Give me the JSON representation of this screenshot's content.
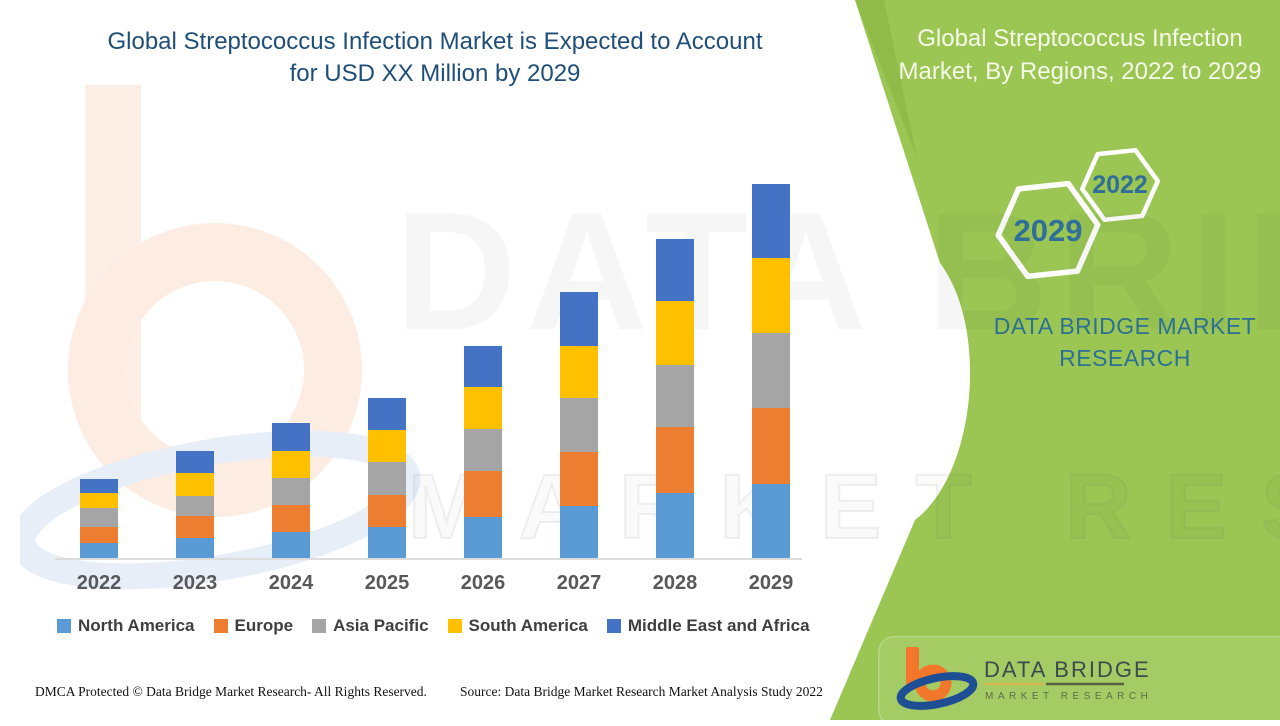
{
  "header": {
    "main_title_line1": "Global Streptococcus Infection Market is Expected to Account",
    "main_title_line2": "for USD XX Million by 2029",
    "panel_title_line1": "Global Streptococcus Infection",
    "panel_title_line2": "Market, By Regions, 2022 to 2029"
  },
  "side_panel": {
    "hexagon_top_label": "2022",
    "hexagon_bottom_label": "2029",
    "brand_line1": "DATA BRIDGE MARKET",
    "brand_line2": "RESEARCH"
  },
  "watermark": {
    "big_text": "DATA BRIDGE",
    "outline_text": "MARKET RESEARCH"
  },
  "chart_data": {
    "type": "bar",
    "stacked": true,
    "title": "Global Streptococcus Infection Market, By Regions, 2022 to 2029",
    "xlabel": "",
    "ylabel": "",
    "unit": "relative units (market size shown as USD XX Million, no value axis displayed)",
    "ylim": [
      0,
      400
    ],
    "grid": false,
    "legend_position": "bottom",
    "categories": [
      "2022",
      "2023",
      "2024",
      "2025",
      "2026",
      "2027",
      "2028",
      "2029"
    ],
    "series": [
      {
        "name": "North America",
        "color": "#5B9BD5",
        "values": [
          16,
          21,
          27,
          32,
          42,
          53,
          66,
          75
        ]
      },
      {
        "name": "Europe",
        "color": "#ED7D31",
        "values": [
          16,
          22,
          27,
          32,
          46,
          54,
          66,
          76
        ]
      },
      {
        "name": "Asia Pacific",
        "color": "#A5A5A5",
        "values": [
          19,
          20,
          27,
          33,
          42,
          54,
          62,
          75
        ]
      },
      {
        "name": "South America",
        "color": "#FFC000",
        "values": [
          15,
          23,
          27,
          32,
          42,
          52,
          64,
          75
        ]
      },
      {
        "name": "Middle East and Africa",
        "color": "#4472C4",
        "values": [
          14,
          22,
          28,
          32,
          41,
          54,
          62,
          74
        ]
      }
    ],
    "totals": [
      80,
      108,
      136,
      161,
      213,
      267,
      320,
      375
    ]
  },
  "footer": {
    "dmca": "DMCA Protected © Data Bridge Market Research- All Rights Reserved.",
    "source": "Source: Data Bridge Market Research Market Analysis Study 2022"
  },
  "logo": {
    "name": "DATA BRIDGE",
    "tagline": "MARKET RESEARCH"
  },
  "colors": {
    "panel_green": "#9bc653",
    "panel_green_dark": "#86b23f",
    "title_navy": "#1f4e79",
    "brand_teal": "#2c7094",
    "hex_year_text": "#2f6f99",
    "axis_gray": "#dcdcdc",
    "tick_text": "#595959",
    "legend_text": "#3f3f3f",
    "logo_orange": "#f2772a",
    "logo_blue": "#1e4e94"
  }
}
